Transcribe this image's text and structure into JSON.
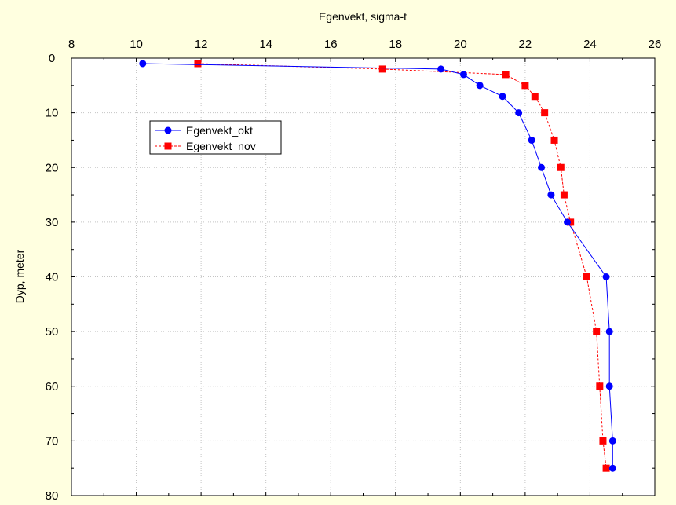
{
  "chart_data": {
    "type": "line",
    "title": "",
    "xlabel": "Egenvekt, sigma-t",
    "ylabel": "Dyp, meter",
    "x_axis_position": "top",
    "y_axis_inverted": true,
    "xlim": [
      8,
      26
    ],
    "ylim": [
      0,
      80
    ],
    "x_ticks": [
      "8",
      "10",
      "12",
      "14",
      "16",
      "18",
      "20",
      "22",
      "24",
      "26"
    ],
    "y_ticks": [
      "0",
      "10",
      "20",
      "30",
      "40",
      "50",
      "60",
      "70",
      "80"
    ],
    "grid": true,
    "legend_position": "upper-left",
    "series": [
      {
        "name": "Egenvekt_okt",
        "color": "#0000ff",
        "line_style": "solid",
        "marker": "circle",
        "points": [
          {
            "x": 10.2,
            "y": 1
          },
          {
            "x": 19.4,
            "y": 2
          },
          {
            "x": 20.1,
            "y": 3
          },
          {
            "x": 20.6,
            "y": 5
          },
          {
            "x": 21.3,
            "y": 7
          },
          {
            "x": 21.8,
            "y": 10
          },
          {
            "x": 22.2,
            "y": 15
          },
          {
            "x": 22.5,
            "y": 20
          },
          {
            "x": 22.8,
            "y": 25
          },
          {
            "x": 23.3,
            "y": 30
          },
          {
            "x": 24.5,
            "y": 40
          },
          {
            "x": 24.6,
            "y": 50
          },
          {
            "x": 24.6,
            "y": 60
          },
          {
            "x": 24.7,
            "y": 70
          },
          {
            "x": 24.7,
            "y": 75
          }
        ]
      },
      {
        "name": "Egenvekt_nov",
        "color": "#ff0000",
        "line_style": "dashed",
        "marker": "square",
        "points": [
          {
            "x": 11.9,
            "y": 1
          },
          {
            "x": 17.6,
            "y": 2
          },
          {
            "x": 21.4,
            "y": 3
          },
          {
            "x": 22.0,
            "y": 5
          },
          {
            "x": 22.3,
            "y": 7
          },
          {
            "x": 22.6,
            "y": 10
          },
          {
            "x": 22.9,
            "y": 15
          },
          {
            "x": 23.1,
            "y": 20
          },
          {
            "x": 23.2,
            "y": 25
          },
          {
            "x": 23.4,
            "y": 30
          },
          {
            "x": 23.9,
            "y": 40
          },
          {
            "x": 24.2,
            "y": 50
          },
          {
            "x": 24.3,
            "y": 60
          },
          {
            "x": 24.4,
            "y": 70
          },
          {
            "x": 24.5,
            "y": 75
          }
        ]
      }
    ]
  }
}
